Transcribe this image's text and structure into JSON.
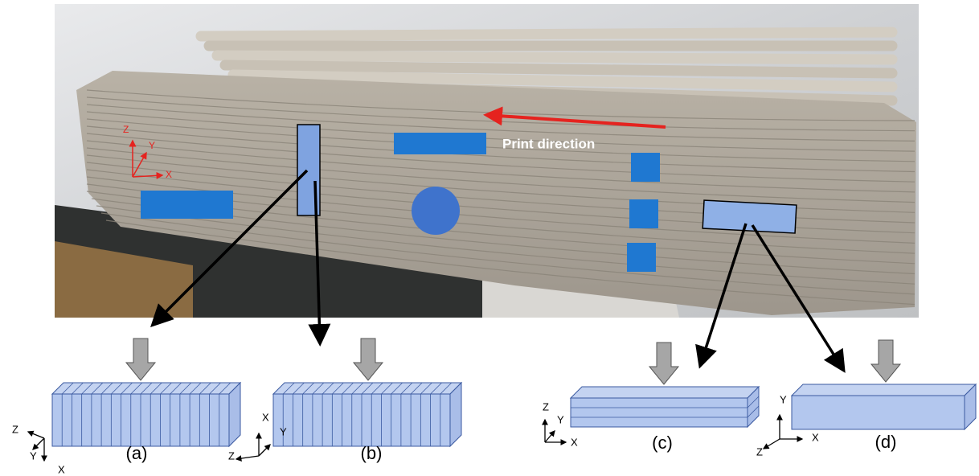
{
  "photo": {
    "annotation": "Print direction",
    "axes": [
      "Z",
      "Y",
      "X"
    ]
  },
  "panels": [
    {
      "label": "(a)",
      "axes": [
        "Z",
        "Y",
        "X"
      ]
    },
    {
      "label": "(b)",
      "axes": [
        "X",
        "Y",
        "Z"
      ]
    },
    {
      "label": "(c)",
      "axes": [
        "Z",
        "Y",
        "X"
      ]
    },
    {
      "label": "(d)",
      "axes": [
        "Y",
        "X",
        "Z"
      ]
    }
  ]
}
